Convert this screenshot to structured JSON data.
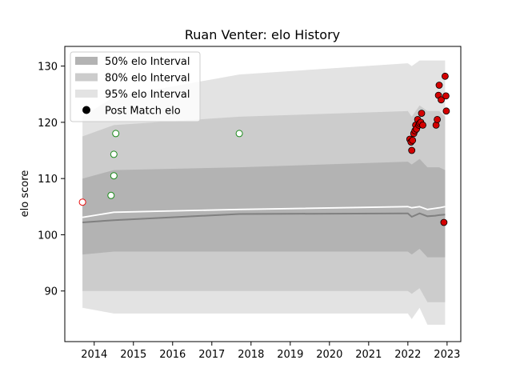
{
  "chart_data": {
    "type": "scatter",
    "title": "Ruan Venter: elo History",
    "xlabel": "",
    "ylabel": "elo score",
    "xlim": [
      2013.25,
      2023.35
    ],
    "ylim": [
      81,
      133.5
    ],
    "x_ticks": [
      2014,
      2015,
      2016,
      2017,
      2018,
      2019,
      2020,
      2021,
      2022,
      2023
    ],
    "y_ticks": [
      90,
      100,
      110,
      120,
      130
    ],
    "grid": false,
    "legend_position": "top-left",
    "legend": [
      {
        "label": "50% elo Interval",
        "kind": "band",
        "color": "#b3b3b3"
      },
      {
        "label": "80% elo Interval",
        "kind": "band",
        "color": "#cccccc"
      },
      {
        "label": "95% elo Interval",
        "kind": "band",
        "color": "#e3e3e3"
      },
      {
        "label": "Post Match elo",
        "kind": "marker",
        "color": "#000000"
      }
    ],
    "colors": {
      "band_50": "#b3b3b3",
      "band_80": "#cccccc",
      "band_95": "#e3e3e3",
      "mean_line": "#808080",
      "median_line": "#ffffff",
      "win": "#d40000",
      "loss": "#1a8a1a",
      "first_match": "#e81010",
      "win_edge": "#000000"
    },
    "band_x": [
      2013.7,
      2014.5,
      2017.7,
      2022.0,
      2022.1,
      2022.3,
      2022.5,
      2022.7,
      2022.8,
      2022.95
    ],
    "band_95_upper": [
      121,
      124.5,
      128.5,
      130.5,
      130,
      131,
      131,
      131,
      131,
      131
    ],
    "band_95_lower": [
      87,
      86,
      86,
      86,
      85,
      87,
      84,
      84,
      84,
      84
    ],
    "band_80_upper": [
      117.5,
      119.5,
      121,
      122,
      121,
      123,
      122,
      122,
      122,
      121
    ],
    "band_80_lower": [
      90,
      90,
      90,
      90,
      89.5,
      90.5,
      88,
      88,
      88,
      88
    ],
    "band_50_upper": [
      110,
      111.5,
      112,
      113,
      112.5,
      113.5,
      112,
      112,
      112,
      111.5
    ],
    "band_50_lower": [
      96.5,
      97,
      97,
      97,
      96.5,
      97.5,
      96,
      96,
      96,
      96
    ],
    "mean_line": [
      102.2,
      102.6,
      103.7,
      103.8,
      103.2,
      103.8,
      103.3,
      103.4,
      103.5,
      103.6
    ],
    "median_line": [
      103.1,
      104,
      104.5,
      105,
      104.8,
      105,
      104.5,
      104.7,
      104.8,
      105
    ],
    "series": [
      {
        "name": "first",
        "style": "first_match",
        "x": [
          2013.7
        ],
        "y": [
          105.8
        ]
      },
      {
        "name": "loss",
        "style": "loss",
        "x": [
          2014.43,
          2014.5,
          2014.5,
          2014.55,
          2017.7
        ],
        "y": [
          107,
          110.5,
          114.3,
          118,
          118
        ]
      },
      {
        "name": "win",
        "style": "win",
        "x": [
          2022.05,
          2022.08,
          2022.1,
          2022.12,
          2022.15,
          2022.18,
          2022.2,
          2022.22,
          2022.25,
          2022.28,
          2022.3,
          2022.33,
          2022.35,
          2022.38,
          2022.72,
          2022.75,
          2022.78,
          2022.8,
          2022.85,
          2022.92,
          2022.95,
          2022.97,
          2022.98
        ],
        "y": [
          117,
          116.5,
          115,
          116.8,
          118,
          118.5,
          119.5,
          118.8,
          120.5,
          119.5,
          119.8,
          120,
          121.6,
          119.5,
          119.5,
          120.5,
          124.8,
          126.6,
          124,
          102.2,
          128.2,
          124.7,
          122
        ]
      }
    ]
  }
}
